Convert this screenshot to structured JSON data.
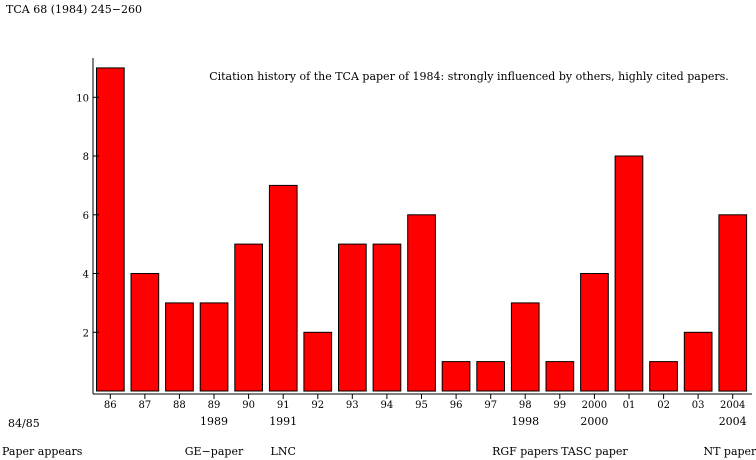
{
  "header": {
    "text": "TCA 68 (1984) 245−260"
  },
  "chart_data": {
    "type": "bar",
    "title": "Citation history of the TCA paper of 1984: strongly influenced by others, highly cited papers.",
    "categories": [
      "86",
      "87",
      "88",
      "89",
      "90",
      "91",
      "92",
      "93",
      "94",
      "95",
      "96",
      "97",
      "98",
      "99",
      "2000",
      "01",
      "02",
      "03",
      "2004"
    ],
    "values": [
      11,
      4,
      3,
      3,
      5,
      7,
      2,
      5,
      5,
      6,
      1,
      1,
      3,
      1,
      4,
      8,
      1,
      2,
      6
    ],
    "yticks": [
      2,
      4,
      6,
      8,
      10
    ],
    "ylim": [
      0,
      11.2
    ],
    "xlabel": "",
    "ylabel": "",
    "grid": false,
    "bar_color": "#ff0000",
    "annotations": [
      {
        "category": "89",
        "year": "1989",
        "label": "GE−paper"
      },
      {
        "category": "91",
        "year": "1991",
        "label": "LNC"
      },
      {
        "category": "98",
        "year": "1998",
        "label": "RGF papers"
      },
      {
        "category": "2000",
        "year": "2000",
        "label": "TASC paper"
      },
      {
        "category": "2004",
        "year": "2004",
        "label": "NT papers"
      }
    ],
    "left_note": {
      "year": "84/85",
      "label": "Paper appears"
    }
  }
}
